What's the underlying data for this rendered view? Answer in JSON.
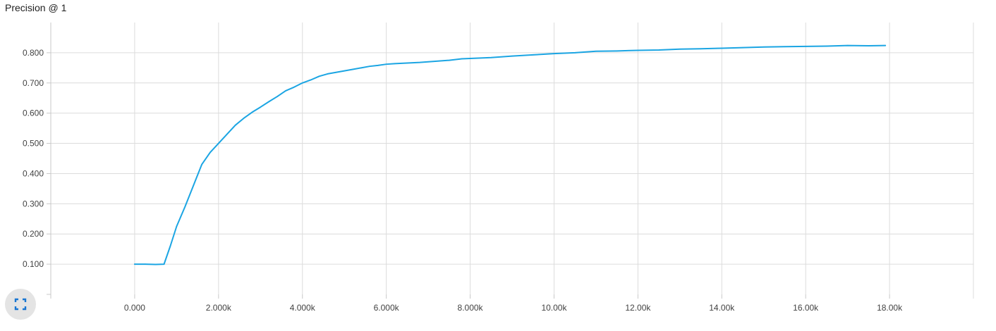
{
  "chart_data": {
    "type": "line",
    "title": "Precision @ 1",
    "xlabel": "",
    "ylabel": "",
    "xlim": [
      -2000,
      20000
    ],
    "ylim": [
      0.0,
      0.9
    ],
    "grid": true,
    "x_ticks": [
      0,
      2000,
      4000,
      6000,
      8000,
      10000,
      12000,
      14000,
      16000,
      18000
    ],
    "x_tick_labels": [
      "0.000",
      "2.000k",
      "4.000k",
      "6.000k",
      "8.000k",
      "10.00k",
      "12.00k",
      "14.00k",
      "16.00k",
      "18.00k"
    ],
    "y_ticks": [
      0.1,
      0.2,
      0.3,
      0.4,
      0.5,
      0.6,
      0.7,
      0.8
    ],
    "y_tick_labels": [
      "0.100",
      "0.200",
      "0.300",
      "0.400",
      "0.500",
      "0.600",
      "0.700",
      "0.800"
    ],
    "series": [
      {
        "color": "#1ba5e3",
        "x": [
          0,
          250,
          500,
          700,
          850,
          1000,
          1200,
          1400,
          1600,
          1800,
          2000,
          2200,
          2400,
          2600,
          2800,
          3000,
          3200,
          3400,
          3600,
          3800,
          4000,
          4200,
          4400,
          4600,
          4800,
          5000,
          5200,
          5400,
          5600,
          5800,
          6000,
          6200,
          6500,
          6800,
          7000,
          7500,
          7800,
          8000,
          8500,
          9000,
          9500,
          10000,
          10500,
          11000,
          11500,
          12000,
          12500,
          13000,
          13500,
          14000,
          14500,
          15000,
          15500,
          16000,
          16500,
          17000,
          17500,
          17900
        ],
        "y": [
          0.1,
          0.1,
          0.099,
          0.1,
          0.16,
          0.225,
          0.29,
          0.36,
          0.43,
          0.47,
          0.5,
          0.53,
          0.56,
          0.583,
          0.603,
          0.62,
          0.638,
          0.655,
          0.674,
          0.686,
          0.7,
          0.71,
          0.722,
          0.73,
          0.735,
          0.74,
          0.745,
          0.75,
          0.755,
          0.758,
          0.762,
          0.764,
          0.766,
          0.768,
          0.77,
          0.775,
          0.78,
          0.781,
          0.784,
          0.789,
          0.793,
          0.797,
          0.8,
          0.805,
          0.806,
          0.808,
          0.809,
          0.812,
          0.813,
          0.815,
          0.817,
          0.819,
          0.82,
          0.821,
          0.822,
          0.824,
          0.823,
          0.824
        ]
      }
    ]
  },
  "controls": {
    "expand_icon": "fullscreen-icon",
    "expand_color": "#1976d2"
  }
}
